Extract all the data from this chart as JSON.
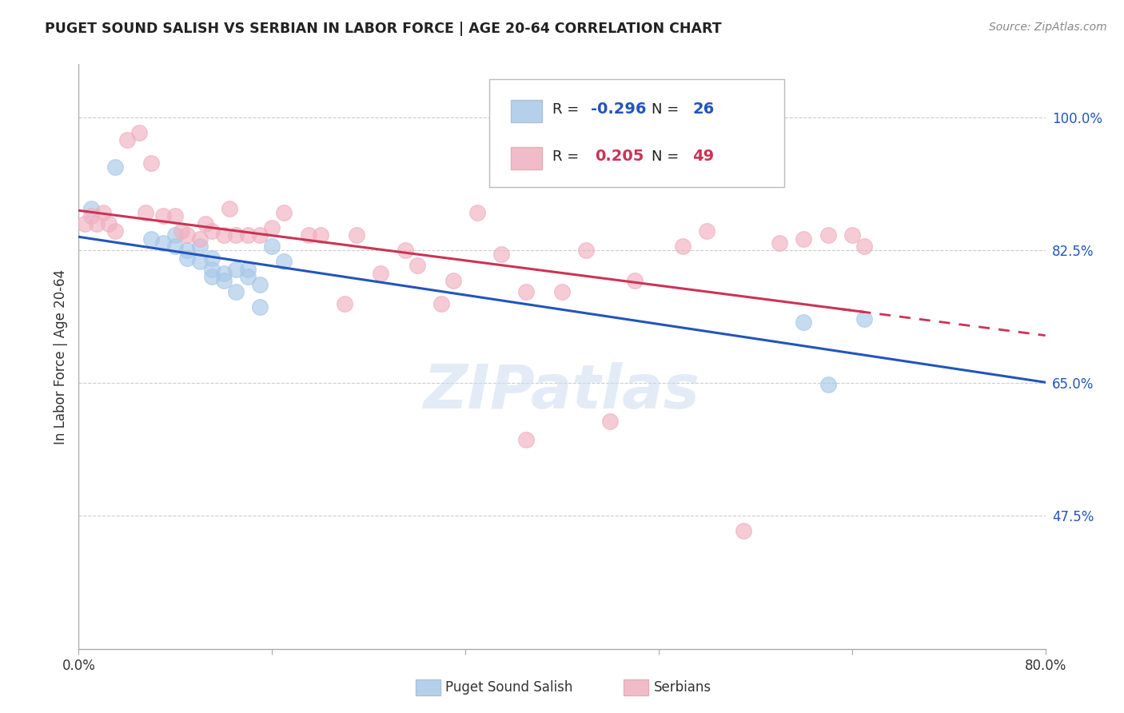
{
  "title": "PUGET SOUND SALISH VS SERBIAN IN LABOR FORCE | AGE 20-64 CORRELATION CHART",
  "source": "Source: ZipAtlas.com",
  "ylabel": "In Labor Force | Age 20-64",
  "xlim": [
    0.0,
    0.8
  ],
  "ylim": [
    0.3,
    1.07
  ],
  "yticks": [
    0.475,
    0.65,
    0.825,
    1.0
  ],
  "ytick_labels": [
    "47.5%",
    "65.0%",
    "82.5%",
    "100.0%"
  ],
  "xticks": [
    0.0,
    0.16,
    0.32,
    0.48,
    0.64,
    0.8
  ],
  "xtick_labels": [
    "0.0%",
    "",
    "",
    "",
    "",
    "80.0%"
  ],
  "blue_r": "-0.296",
  "blue_n": "26",
  "pink_r": "0.205",
  "pink_n": "49",
  "blue_color": "#a8c8e8",
  "pink_color": "#f0b0c0",
  "blue_line_color": "#2255bb",
  "pink_line_color": "#cc3355",
  "watermark": "ZIPatlas",
  "blue_scatter_x": [
    0.01,
    0.03,
    0.06,
    0.07,
    0.08,
    0.08,
    0.09,
    0.09,
    0.1,
    0.1,
    0.11,
    0.11,
    0.11,
    0.12,
    0.12,
    0.13,
    0.13,
    0.14,
    0.14,
    0.15,
    0.15,
    0.16,
    0.17,
    0.6,
    0.62,
    0.65
  ],
  "blue_scatter_y": [
    0.88,
    0.935,
    0.84,
    0.835,
    0.845,
    0.83,
    0.825,
    0.815,
    0.81,
    0.83,
    0.815,
    0.8,
    0.79,
    0.795,
    0.785,
    0.77,
    0.8,
    0.8,
    0.79,
    0.78,
    0.75,
    0.83,
    0.81,
    0.73,
    0.648,
    0.735
  ],
  "pink_scatter_x": [
    0.005,
    0.01,
    0.015,
    0.02,
    0.025,
    0.03,
    0.04,
    0.05,
    0.055,
    0.06,
    0.07,
    0.08,
    0.085,
    0.09,
    0.1,
    0.105,
    0.11,
    0.12,
    0.125,
    0.13,
    0.14,
    0.15,
    0.16,
    0.17,
    0.19,
    0.2,
    0.22,
    0.23,
    0.25,
    0.27,
    0.28,
    0.3,
    0.31,
    0.33,
    0.35,
    0.37,
    0.4,
    0.42,
    0.44,
    0.46,
    0.5,
    0.52,
    0.55,
    0.58,
    0.6,
    0.62,
    0.64,
    0.65,
    0.37
  ],
  "pink_scatter_y": [
    0.86,
    0.87,
    0.86,
    0.875,
    0.86,
    0.85,
    0.97,
    0.98,
    0.875,
    0.94,
    0.87,
    0.87,
    0.85,
    0.845,
    0.84,
    0.86,
    0.85,
    0.845,
    0.88,
    0.845,
    0.845,
    0.845,
    0.855,
    0.875,
    0.845,
    0.845,
    0.755,
    0.845,
    0.795,
    0.825,
    0.805,
    0.755,
    0.785,
    0.875,
    0.82,
    0.77,
    0.77,
    0.825,
    0.6,
    0.785,
    0.83,
    0.85,
    0.455,
    0.835,
    0.84,
    0.845,
    0.845,
    0.83,
    0.575
  ]
}
